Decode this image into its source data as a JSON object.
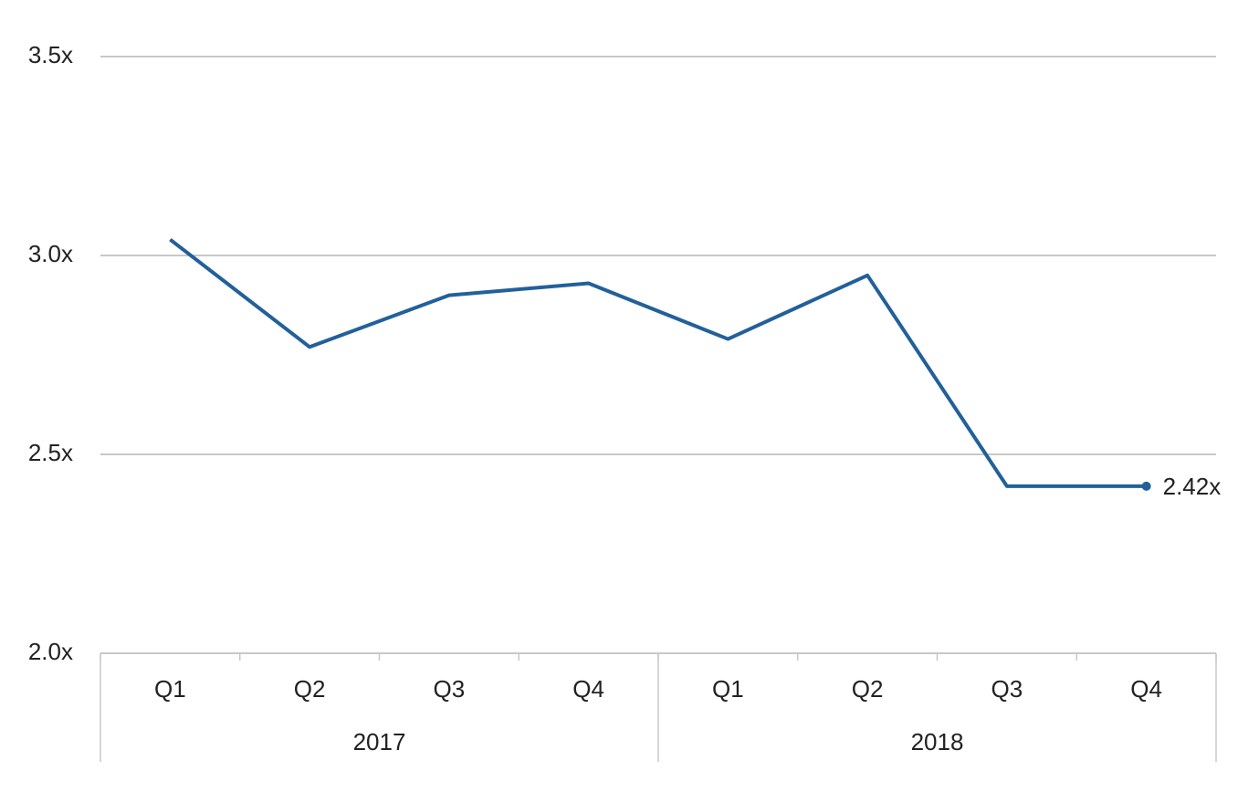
{
  "chart_data": {
    "type": "line",
    "categories": [
      "Q1",
      "Q2",
      "Q3",
      "Q4",
      "Q1",
      "Q2",
      "Q3",
      "Q4"
    ],
    "groups": [
      "2017",
      "2018"
    ],
    "values": [
      3.04,
      2.77,
      2.9,
      2.93,
      2.79,
      2.95,
      2.42,
      2.42
    ],
    "value_labels": [
      null,
      null,
      null,
      null,
      null,
      null,
      null,
      "2.42x"
    ],
    "color": "#22609a",
    "ylim": [
      2.0,
      3.5
    ],
    "yticks": [
      {
        "value": 2.0,
        "label": "2.0x"
      },
      {
        "value": 2.5,
        "label": "2.5x"
      },
      {
        "value": 3.0,
        "label": "3.0x"
      },
      {
        "value": 3.5,
        "label": "3.5x"
      }
    ],
    "grid": true
  }
}
